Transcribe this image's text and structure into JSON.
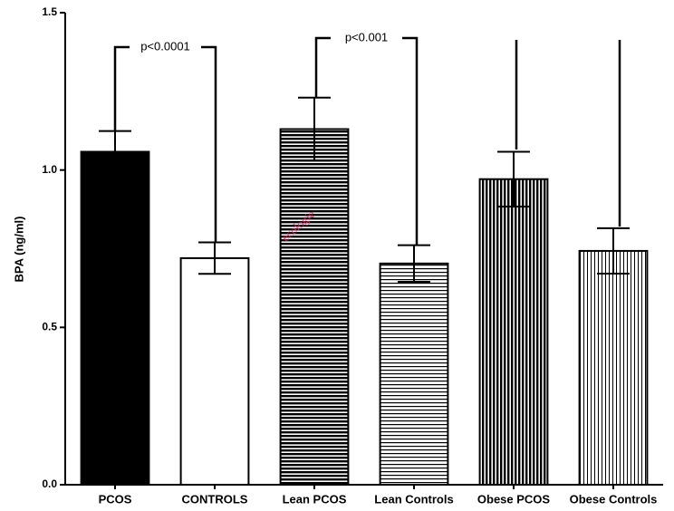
{
  "chart_data": {
    "type": "bar",
    "y_label": "BPA (ng/ml)",
    "categories": [
      "PCOS",
      "CONTROLS",
      "Lean PCOS",
      "Lean Controls",
      "Obese PCOS",
      "Obese Controls"
    ],
    "values": [
      1.058,
      0.72,
      1.13,
      0.703,
      0.971,
      0.743
    ],
    "errors": [
      0.066,
      0.05,
      0.1,
      0.058,
      0.087,
      0.072
    ],
    "patterns": [
      "solid",
      "none",
      "h-dense",
      "h-light",
      "v-dense",
      "v-light"
    ],
    "color": "#000000",
    "ylim": [
      0,
      1.5
    ],
    "yticks": [
      {
        "value": 0,
        "label": "0.0"
      },
      {
        "value": 0.5,
        "label": "0.5"
      },
      {
        "value": 1,
        "label": "1.0"
      },
      {
        "value": 1.5,
        "label": "1.5"
      }
    ],
    "annotations": [
      "p<0.0001",
      "p<0.001"
    ],
    "watermark": "ecologie"
  }
}
